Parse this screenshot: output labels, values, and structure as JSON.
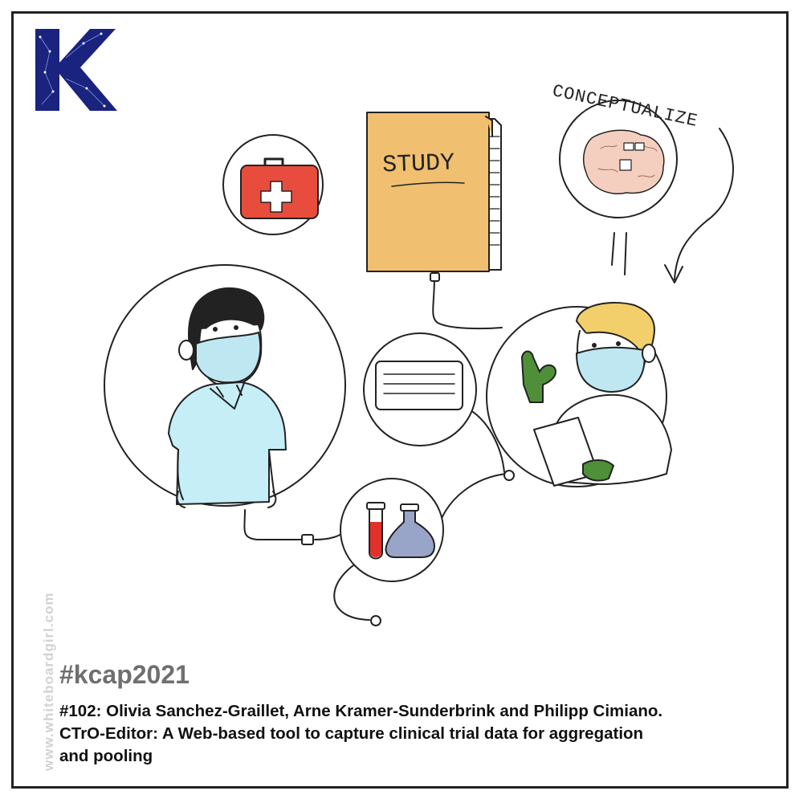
{
  "logo": {
    "letter": "K",
    "color": "#1a237e"
  },
  "labels": {
    "study": "STUDY",
    "conceptualize": "CONCEPTUALIZE"
  },
  "watermark": "www.whiteboardgirl.com",
  "hashtag": "#kcap2021",
  "caption": {
    "line1": "#102: Olivia Sanchez-Graillet, Arne Kramer-Sunderbrink and Philipp Cimiano.",
    "line2": "CTrO-Editor: A Web-based tool to capture clinical trial data for aggregation",
    "line3": "and pooling"
  },
  "colors": {
    "folder": "#f0c070",
    "medkit": "#e84c3d",
    "mask": "#bfe7f2",
    "shirt": "#c6eef7",
    "glove": "#4f8f3a",
    "hair_blond": "#f2cf6a",
    "brain": "#f4cfc0",
    "flask": "#98a4c8",
    "blood": "#e0312b"
  }
}
